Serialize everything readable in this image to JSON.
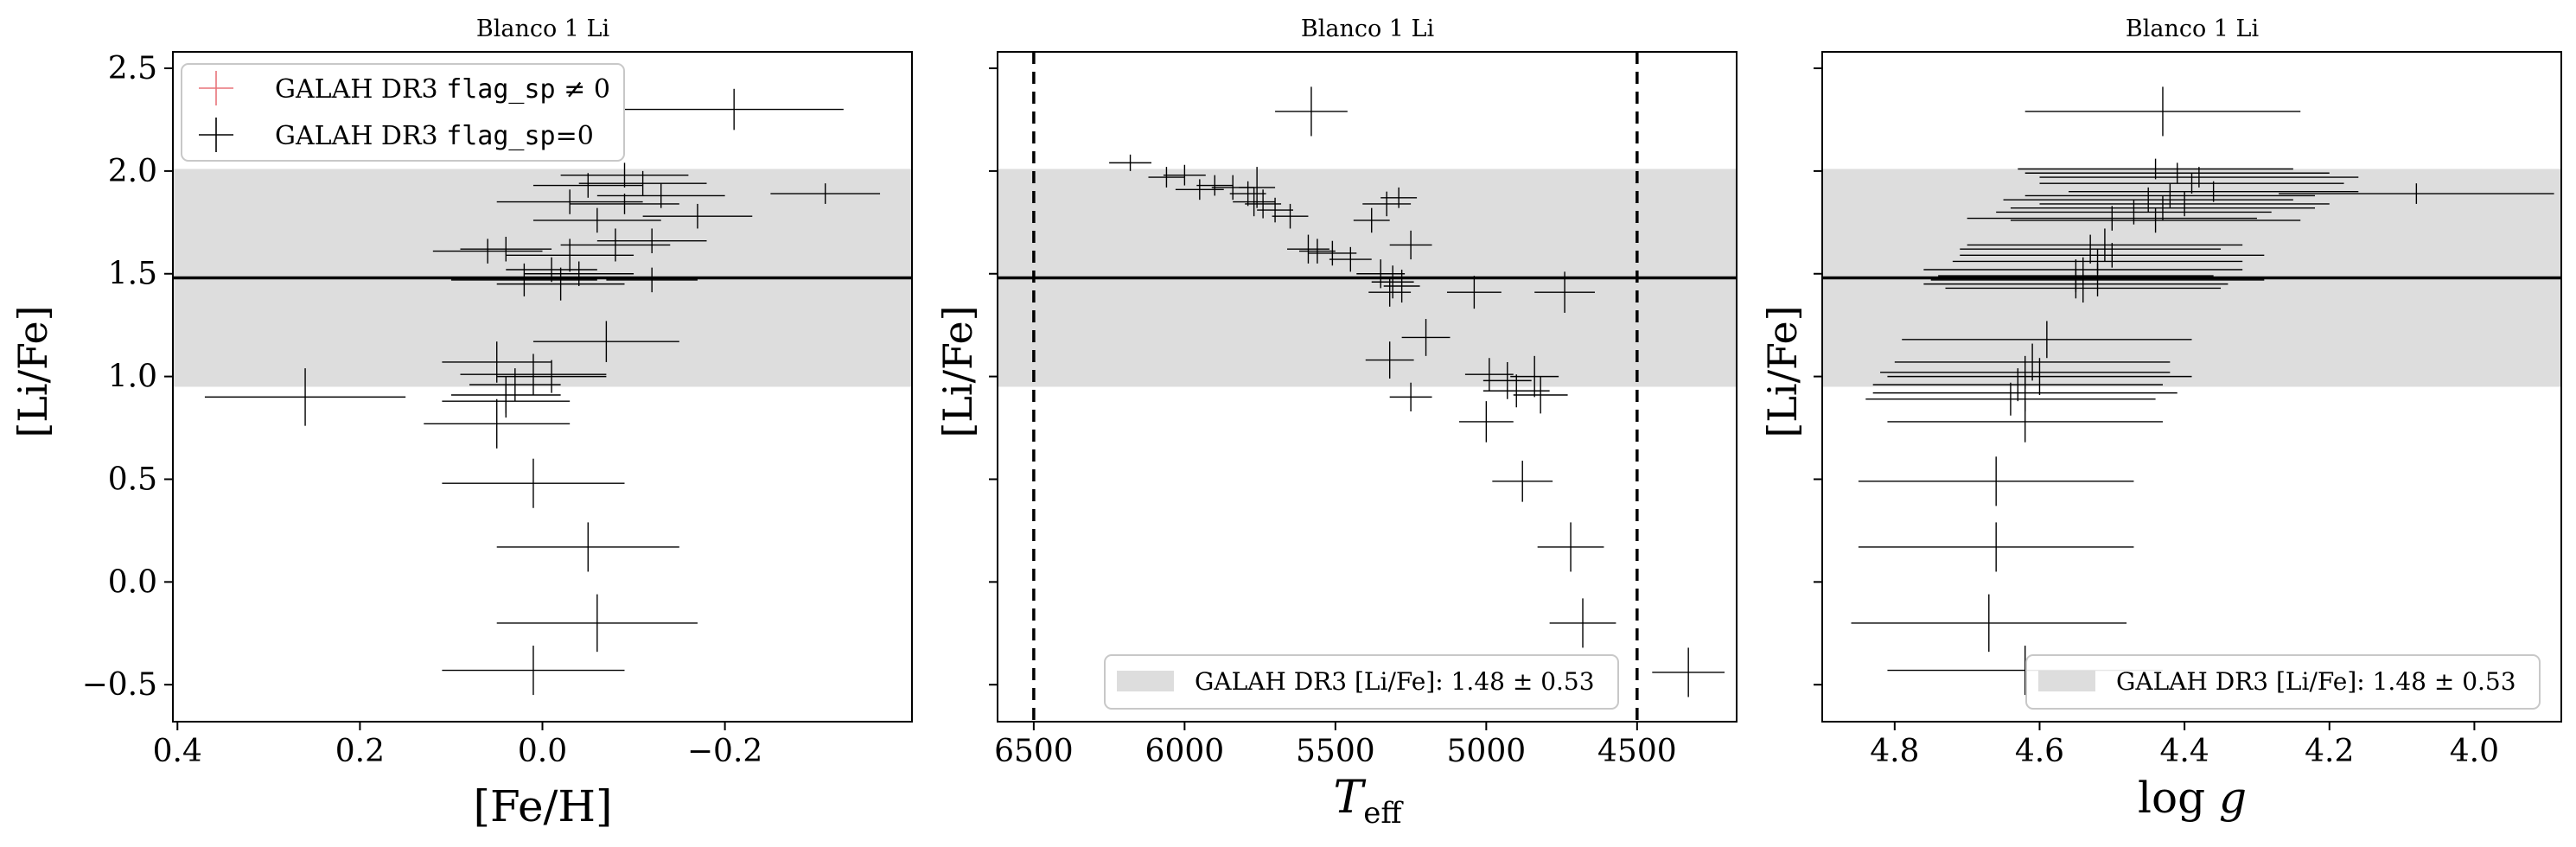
{
  "colors": {
    "band": "#dddddd",
    "points": "#000000",
    "flag_marker": "#e8737a",
    "axes": "#000000"
  },
  "chart_data": [
    {
      "type": "scatter",
      "title": "Blanco 1 Li",
      "xlabel": "[Fe/H]",
      "ylabel": "[Li/Fe]",
      "xlim": [
        0.405,
        -0.405
      ],
      "ylim": [
        -0.68,
        2.58
      ],
      "x_ticks": [
        0.4,
        0.2,
        0.0,
        -0.2
      ],
      "x_tick_labels": [
        "0.4",
        "0.2",
        "0.0",
        "−0.2"
      ],
      "y_ticks": [
        -0.5,
        0.0,
        0.5,
        1.0,
        1.5,
        2.0,
        2.5
      ],
      "y_tick_labels": [
        "−0.5",
        "0.0",
        "0.5",
        "1.0",
        "1.5",
        "2.0",
        "2.5"
      ],
      "show_y_tick_labels": true,
      "band": {
        "center": 1.48,
        "halfwidth": 0.53
      },
      "hline": 1.48,
      "vlines": [],
      "legend": {
        "placement": "top-left",
        "entries": [
          {
            "marker": "plus",
            "color": "#e8737a",
            "label_prefix": "GALAH DR3 ",
            "label_mono": "flag_sp",
            "label_suffix": " ≠ 0"
          },
          {
            "marker": "plus",
            "color": "#000000",
            "label_prefix": "GALAH DR3 ",
            "label_mono": "flag_sp",
            "label_suffix": "=0"
          }
        ]
      },
      "series": [
        {
          "points": [
            {
              "x": -0.21,
              "y": 2.3,
              "xerr": 0.12,
              "yerr": 0.1
            },
            {
              "x": -0.31,
              "y": 1.89,
              "xerr": 0.06,
              "yerr": 0.05
            },
            {
              "x": -0.09,
              "y": 1.98,
              "xerr": 0.07,
              "yerr": 0.06
            },
            {
              "x": -0.11,
              "y": 1.94,
              "xerr": 0.07,
              "yerr": 0.06
            },
            {
              "x": -0.05,
              "y": 1.93,
              "xerr": 0.06,
              "yerr": 0.06
            },
            {
              "x": -0.13,
              "y": 1.88,
              "xerr": 0.07,
              "yerr": 0.06
            },
            {
              "x": -0.03,
              "y": 1.85,
              "xerr": 0.08,
              "yerr": 0.06
            },
            {
              "x": -0.09,
              "y": 1.84,
              "xerr": 0.06,
              "yerr": 0.05
            },
            {
              "x": -0.17,
              "y": 1.78,
              "xerr": 0.06,
              "yerr": 0.06
            },
            {
              "x": -0.06,
              "y": 1.76,
              "xerr": 0.07,
              "yerr": 0.06
            },
            {
              "x": -0.12,
              "y": 1.66,
              "xerr": 0.06,
              "yerr": 0.06
            },
            {
              "x": -0.08,
              "y": 1.64,
              "xerr": 0.06,
              "yerr": 0.08
            },
            {
              "x": 0.04,
              "y": 1.62,
              "xerr": 0.05,
              "yerr": 0.06
            },
            {
              "x": 0.06,
              "y": 1.61,
              "xerr": 0.06,
              "yerr": 0.06
            },
            {
              "x": -0.03,
              "y": 1.59,
              "xerr": 0.07,
              "yerr": 0.08
            },
            {
              "x": -0.01,
              "y": 1.52,
              "xerr": 0.05,
              "yerr": 0.06
            },
            {
              "x": 0.02,
              "y": 1.47,
              "xerr": 0.08,
              "yerr": 0.08
            },
            {
              "x": -0.02,
              "y": 1.45,
              "xerr": 0.07,
              "yerr": 0.08
            },
            {
              "x": -0.04,
              "y": 1.5,
              "xerr": 0.06,
              "yerr": 0.06
            },
            {
              "x": -0.12,
              "y": 1.47,
              "xerr": 0.05,
              "yerr": 0.06
            },
            {
              "x": -0.07,
              "y": 1.17,
              "xerr": 0.08,
              "yerr": 0.1
            },
            {
              "x": 0.05,
              "y": 1.07,
              "xerr": 0.06,
              "yerr": 0.1
            },
            {
              "x": 0.01,
              "y": 1.01,
              "xerr": 0.08,
              "yerr": 0.1
            },
            {
              "x": -0.01,
              "y": 1.0,
              "xerr": 0.06,
              "yerr": 0.08
            },
            {
              "x": 0.03,
              "y": 0.96,
              "xerr": 0.05,
              "yerr": 0.08
            },
            {
              "x": 0.04,
              "y": 0.91,
              "xerr": 0.06,
              "yerr": 0.09
            },
            {
              "x": 0.04,
              "y": 0.88,
              "xerr": 0.07,
              "yerr": 0.08
            },
            {
              "x": 0.26,
              "y": 0.9,
              "xerr": 0.11,
              "yerr": 0.14
            },
            {
              "x": 0.05,
              "y": 0.77,
              "xerr": 0.08,
              "yerr": 0.12
            },
            {
              "x": 0.01,
              "y": 0.48,
              "xerr": 0.1,
              "yerr": 0.12
            },
            {
              "x": -0.05,
              "y": 0.17,
              "xerr": 0.1,
              "yerr": 0.12
            },
            {
              "x": -0.06,
              "y": -0.2,
              "xerr": 0.11,
              "yerr": 0.14
            },
            {
              "x": 0.01,
              "y": -0.43,
              "xerr": 0.1,
              "yerr": 0.12
            }
          ]
        }
      ]
    },
    {
      "type": "scatter",
      "title": "Blanco 1 Li",
      "xlabel": "T_eff",
      "ylabel": "[Li/Fe]",
      "xlim": [
        6620,
        4170
      ],
      "ylim": [
        -0.68,
        2.58
      ],
      "x_ticks": [
        6500,
        6000,
        5500,
        5000,
        4500
      ],
      "x_tick_labels": [
        "6500",
        "6000",
        "5500",
        "5000",
        "4500"
      ],
      "y_ticks": [
        -0.5,
        0.0,
        0.5,
        1.0,
        1.5,
        2.0,
        2.5
      ],
      "y_tick_labels": [],
      "show_y_tick_labels": false,
      "band": {
        "center": 1.48,
        "halfwidth": 0.53
      },
      "hline": 1.48,
      "vlines": [
        6500,
        4500
      ],
      "legend": {
        "placement": "bottom-right",
        "band_entry": {
          "label": "GALAH DR3 [Li/Fe]: 1.48 ± 0.53"
        }
      },
      "series": [
        {
          "points": [
            {
              "x": 5580,
              "y": 2.29,
              "xerr": 120,
              "yerr": 0.12
            },
            {
              "x": 6180,
              "y": 2.04,
              "xerr": 70,
              "yerr": 0.04
            },
            {
              "x": 6060,
              "y": 1.97,
              "xerr": 60,
              "yerr": 0.05
            },
            {
              "x": 6000,
              "y": 1.98,
              "xerr": 70,
              "yerr": 0.05
            },
            {
              "x": 5950,
              "y": 1.91,
              "xerr": 80,
              "yerr": 0.05
            },
            {
              "x": 5900,
              "y": 1.93,
              "xerr": 60,
              "yerr": 0.05
            },
            {
              "x": 5840,
              "y": 1.92,
              "xerr": 70,
              "yerr": 0.06
            },
            {
              "x": 5790,
              "y": 1.89,
              "xerr": 60,
              "yerr": 0.06
            },
            {
              "x": 5770,
              "y": 1.85,
              "xerr": 70,
              "yerr": 0.07
            },
            {
              "x": 5740,
              "y": 1.84,
              "xerr": 60,
              "yerr": 0.07
            },
            {
              "x": 5760,
              "y": 1.92,
              "xerr": 60,
              "yerr": 0.1
            },
            {
              "x": 5700,
              "y": 1.81,
              "xerr": 60,
              "yerr": 0.06
            },
            {
              "x": 5650,
              "y": 1.78,
              "xerr": 60,
              "yerr": 0.06
            },
            {
              "x": 5330,
              "y": 1.84,
              "xerr": 80,
              "yerr": 0.06
            },
            {
              "x": 5290,
              "y": 1.87,
              "xerr": 60,
              "yerr": 0.05
            },
            {
              "x": 5380,
              "y": 1.76,
              "xerr": 60,
              "yerr": 0.06
            },
            {
              "x": 5590,
              "y": 1.62,
              "xerr": 70,
              "yerr": 0.07
            },
            {
              "x": 5560,
              "y": 1.61,
              "xerr": 60,
              "yerr": 0.06
            },
            {
              "x": 5510,
              "y": 1.6,
              "xerr": 80,
              "yerr": 0.06
            },
            {
              "x": 5450,
              "y": 1.57,
              "xerr": 70,
              "yerr": 0.06
            },
            {
              "x": 5250,
              "y": 1.64,
              "xerr": 70,
              "yerr": 0.07
            },
            {
              "x": 5350,
              "y": 1.5,
              "xerr": 80,
              "yerr": 0.07
            },
            {
              "x": 5310,
              "y": 1.46,
              "xerr": 70,
              "yerr": 0.08
            },
            {
              "x": 5280,
              "y": 1.44,
              "xerr": 60,
              "yerr": 0.08
            },
            {
              "x": 5320,
              "y": 1.41,
              "xerr": 70,
              "yerr": 0.07
            },
            {
              "x": 5040,
              "y": 1.41,
              "xerr": 90,
              "yerr": 0.08
            },
            {
              "x": 4740,
              "y": 1.41,
              "xerr": 100,
              "yerr": 0.1
            },
            {
              "x": 5200,
              "y": 1.19,
              "xerr": 80,
              "yerr": 0.09
            },
            {
              "x": 5320,
              "y": 1.08,
              "xerr": 80,
              "yerr": 0.09
            },
            {
              "x": 4990,
              "y": 1.01,
              "xerr": 80,
              "yerr": 0.08
            },
            {
              "x": 4930,
              "y": 0.98,
              "xerr": 80,
              "yerr": 0.09
            },
            {
              "x": 4840,
              "y": 1.0,
              "xerr": 80,
              "yerr": 0.1
            },
            {
              "x": 4900,
              "y": 0.93,
              "xerr": 110,
              "yerr": 0.08
            },
            {
              "x": 5250,
              "y": 0.9,
              "xerr": 70,
              "yerr": 0.07
            },
            {
              "x": 4820,
              "y": 0.91,
              "xerr": 90,
              "yerr": 0.09
            },
            {
              "x": 5000,
              "y": 0.78,
              "xerr": 90,
              "yerr": 0.1
            },
            {
              "x": 4880,
              "y": 0.49,
              "xerr": 100,
              "yerr": 0.1
            },
            {
              "x": 4720,
              "y": 0.17,
              "xerr": 110,
              "yerr": 0.12
            },
            {
              "x": 4680,
              "y": -0.2,
              "xerr": 110,
              "yerr": 0.12
            },
            {
              "x": 4330,
              "y": -0.44,
              "xerr": 120,
              "yerr": 0.12
            }
          ]
        }
      ]
    },
    {
      "type": "scatter",
      "title": "Blanco 1 Li",
      "xlabel": "log g",
      "ylabel": "[Li/Fe]",
      "xlim": [
        4.9,
        3.88
      ],
      "ylim": [
        -0.68,
        2.58
      ],
      "x_ticks": [
        4.8,
        4.6,
        4.4,
        4.2,
        4.0
      ],
      "x_tick_labels": [
        "4.8",
        "4.6",
        "4.4",
        "4.2",
        "4.0"
      ],
      "y_ticks": [
        -0.5,
        0.0,
        0.5,
        1.0,
        1.5,
        2.0,
        2.5
      ],
      "y_tick_labels": [],
      "show_y_tick_labels": false,
      "band": {
        "center": 1.48,
        "halfwidth": 0.53
      },
      "hline": 1.48,
      "vlines": [],
      "legend": {
        "placement": "bottom-right",
        "band_entry": {
          "label": "GALAH DR3 [Li/Fe]: 1.48 ± 0.53"
        }
      },
      "series": [
        {
          "points": [
            {
              "x": 4.43,
              "y": 2.29,
              "xerr": 0.19,
              "yerr": 0.12
            },
            {
              "x": 4.44,
              "y": 2.01,
              "xerr": 0.19,
              "yerr": 0.05
            },
            {
              "x": 4.41,
              "y": 1.99,
              "xerr": 0.21,
              "yerr": 0.05
            },
            {
              "x": 4.38,
              "y": 1.97,
              "xerr": 0.22,
              "yerr": 0.05
            },
            {
              "x": 4.39,
              "y": 1.94,
              "xerr": 0.21,
              "yerr": 0.05
            },
            {
              "x": 4.08,
              "y": 1.89,
              "xerr": 0.19,
              "yerr": 0.05
            },
            {
              "x": 4.36,
              "y": 1.9,
              "xerr": 0.2,
              "yerr": 0.05
            },
            {
              "x": 4.42,
              "y": 1.88,
              "xerr": 0.2,
              "yerr": 0.06
            },
            {
              "x": 4.45,
              "y": 1.86,
              "xerr": 0.2,
              "yerr": 0.06
            },
            {
              "x": 4.4,
              "y": 1.84,
              "xerr": 0.2,
              "yerr": 0.06
            },
            {
              "x": 4.43,
              "y": 1.82,
              "xerr": 0.21,
              "yerr": 0.06
            },
            {
              "x": 4.47,
              "y": 1.8,
              "xerr": 0.19,
              "yerr": 0.06
            },
            {
              "x": 4.5,
              "y": 1.77,
              "xerr": 0.2,
              "yerr": 0.06
            },
            {
              "x": 4.44,
              "y": 1.76,
              "xerr": 0.2,
              "yerr": 0.06
            },
            {
              "x": 4.51,
              "y": 1.64,
              "xerr": 0.19,
              "yerr": 0.08
            },
            {
              "x": 4.53,
              "y": 1.62,
              "xerr": 0.18,
              "yerr": 0.07
            },
            {
              "x": 4.5,
              "y": 1.59,
              "xerr": 0.21,
              "yerr": 0.06
            },
            {
              "x": 4.52,
              "y": 1.56,
              "xerr": 0.2,
              "yerr": 0.06
            },
            {
              "x": 4.54,
              "y": 1.52,
              "xerr": 0.22,
              "yerr": 0.06
            },
            {
              "x": 4.55,
              "y": 1.49,
              "xerr": 0.19,
              "yerr": 0.08
            },
            {
              "x": 4.52,
              "y": 1.47,
              "xerr": 0.23,
              "yerr": 0.08
            },
            {
              "x": 4.55,
              "y": 1.45,
              "xerr": 0.21,
              "yerr": 0.07
            },
            {
              "x": 4.54,
              "y": 1.43,
              "xerr": 0.19,
              "yerr": 0.07
            },
            {
              "x": 4.59,
              "y": 1.18,
              "xerr": 0.2,
              "yerr": 0.09
            },
            {
              "x": 4.61,
              "y": 1.07,
              "xerr": 0.19,
              "yerr": 0.09
            },
            {
              "x": 4.62,
              "y": 1.02,
              "xerr": 0.2,
              "yerr": 0.08
            },
            {
              "x": 4.6,
              "y": 1.0,
              "xerr": 0.21,
              "yerr": 0.09
            },
            {
              "x": 4.63,
              "y": 0.96,
              "xerr": 0.2,
              "yerr": 0.08
            },
            {
              "x": 4.62,
              "y": 0.92,
              "xerr": 0.21,
              "yerr": 0.09
            },
            {
              "x": 4.64,
              "y": 0.89,
              "xerr": 0.2,
              "yerr": 0.08
            },
            {
              "x": 4.62,
              "y": 0.78,
              "xerr": 0.19,
              "yerr": 0.1
            },
            {
              "x": 4.66,
              "y": 0.49,
              "xerr": 0.19,
              "yerr": 0.12
            },
            {
              "x": 4.66,
              "y": 0.17,
              "xerr": 0.19,
              "yerr": 0.12
            },
            {
              "x": 4.67,
              "y": -0.2,
              "xerr": 0.19,
              "yerr": 0.14
            },
            {
              "x": 4.62,
              "y": -0.43,
              "xerr": 0.19,
              "yerr": 0.12
            }
          ]
        }
      ]
    }
  ]
}
